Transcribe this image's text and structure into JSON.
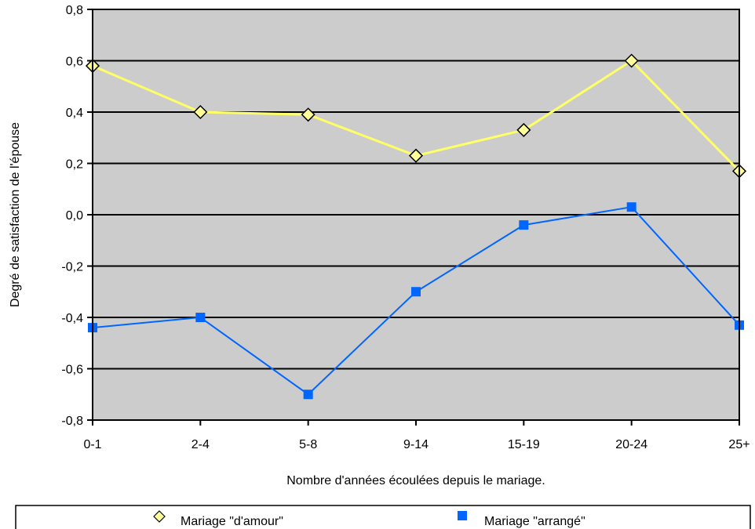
{
  "chart_data": {
    "type": "line",
    "categories": [
      "0-1",
      "2-4",
      "5-8",
      "9-14",
      "15-19",
      "20-24",
      "25+"
    ],
    "series": [
      {
        "name": "Mariage \"d'amour\"",
        "values": [
          0.58,
          0.4,
          0.39,
          0.23,
          0.33,
          0.6,
          0.17
        ],
        "color": "#ffff66",
        "marker": "diamond"
      },
      {
        "name": "Mariage \"arrangé\"",
        "values": [
          -0.44,
          -0.4,
          -0.7,
          -0.3,
          -0.04,
          0.03,
          -0.43
        ],
        "color": "#0066ff",
        "marker": "square"
      }
    ],
    "title": "",
    "xlabel": "Nombre d'années écoulées depuis le mariage.",
    "ylabel": "Degré de satisfaction de l'épouse",
    "ylim": [
      -0.8,
      0.8
    ],
    "yticks": [
      -0.8,
      -0.6,
      -0.4,
      -0.2,
      0.0,
      0.2,
      0.4,
      0.6,
      0.8
    ],
    "ytick_labels": [
      "-0,8",
      "-0,6",
      "-0,4",
      "-0,2",
      "0,0",
      "0,2",
      "0,4",
      "0,6",
      "0,8"
    ],
    "grid": true,
    "plot_background": "#cccccc",
    "legend_position": "bottom"
  }
}
